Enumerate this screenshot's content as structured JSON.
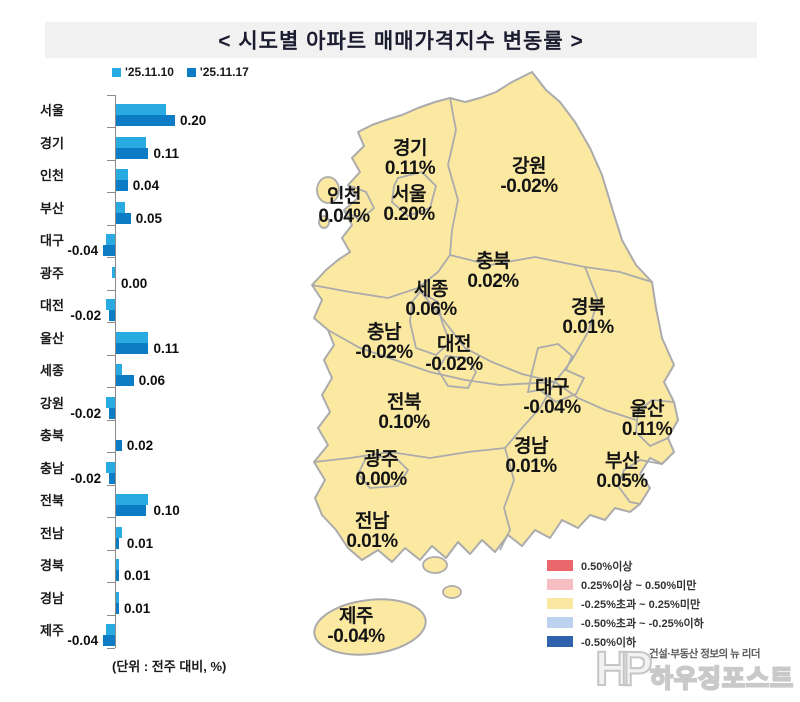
{
  "title": "<  시도별  아파트  매매가격지수  변동률  >",
  "colors": {
    "bar_light": "#29ABE2",
    "bar_dark": "#0C7DC4",
    "land": "#FBE9A2",
    "land_border": "#ABABAB",
    "banner_bg": "#F1F1F1",
    "title_color": "#1C1C30",
    "legend_red": "#E9676D",
    "legend_pink": "#F6BEC2",
    "legend_yellow": "#FBE8A0",
    "legend_lightblue": "#BDD2EE",
    "legend_blue": "#3061AD"
  },
  "series_legend": [
    {
      "label": "'25.11.10",
      "color": "#29ABE2"
    },
    {
      "label": "'25.11.17",
      "color": "#0C7DC4"
    }
  ],
  "chart_data": {
    "type": "bar",
    "orientation": "horizontal",
    "title": "시도별 아파트 매매가격지수 변동률",
    "unit_note": "(단위 : 전주 대비, %)",
    "xlabel": "",
    "ylabel": "",
    "xlim": [
      -0.1,
      0.3
    ],
    "grid": false,
    "legend_position": "top-left",
    "categories": [
      "서울",
      "경기",
      "인천",
      "부산",
      "대구",
      "광주",
      "대전",
      "울산",
      "세종",
      "강원",
      "충북",
      "충남",
      "전북",
      "전남",
      "경북",
      "경남",
      "제주"
    ],
    "series": [
      {
        "name": "'25.11.10",
        "color": "#29ABE2",
        "values": [
          0.17,
          0.1,
          0.04,
          0.03,
          -0.03,
          -0.01,
          -0.03,
          0.11,
          0.02,
          -0.03,
          0.0,
          -0.03,
          0.11,
          0.02,
          0.01,
          0.01,
          -0.03
        ]
      },
      {
        "name": "'25.11.17",
        "color": "#0C7DC4",
        "values": [
          0.2,
          0.11,
          0.04,
          0.05,
          -0.04,
          0.0,
          -0.02,
          0.11,
          0.06,
          -0.02,
          0.02,
          -0.02,
          0.1,
          0.01,
          0.01,
          0.01,
          -0.04
        ]
      }
    ],
    "value_labels": [
      "0.20",
      "0.11",
      "0.04",
      "0.05",
      "-0.04",
      "0.00",
      "-0.02",
      "0.11",
      "0.06",
      "-0.02",
      "0.02",
      "-0.02",
      "0.10",
      "0.01",
      "0.01",
      "0.01",
      "-0.04"
    ]
  },
  "map": {
    "regions": [
      {
        "id": "gyeonggi",
        "name": "경기",
        "value": "0.11%"
      },
      {
        "id": "incheon",
        "name": "인천",
        "value": "0.04%"
      },
      {
        "id": "seoul",
        "name": "서울",
        "value": "0.20%"
      },
      {
        "id": "gangwon",
        "name": "강원",
        "value": "-0.02%"
      },
      {
        "id": "chungbuk",
        "name": "충북",
        "value": "0.02%"
      },
      {
        "id": "sejong",
        "name": "세종",
        "value": "0.06%"
      },
      {
        "id": "chungnam",
        "name": "충남",
        "value": "-0.02%"
      },
      {
        "id": "daejeon",
        "name": "대전",
        "value": "-0.02%"
      },
      {
        "id": "gyeongbuk",
        "name": "경북",
        "value": "0.01%"
      },
      {
        "id": "daegu",
        "name": "대구",
        "value": "-0.04%"
      },
      {
        "id": "jeonbuk",
        "name": "전북",
        "value": "0.10%"
      },
      {
        "id": "ulsan",
        "name": "울산",
        "value": "0.11%"
      },
      {
        "id": "gyeongnam",
        "name": "경남",
        "value": "0.01%"
      },
      {
        "id": "busan",
        "name": "부산",
        "value": "0.05%"
      },
      {
        "id": "gwangju",
        "name": "광주",
        "value": "0.00%"
      },
      {
        "id": "jeonnam",
        "name": "전남",
        "value": "0.01%"
      },
      {
        "id": "jeju",
        "name": "제주",
        "value": "-0.04%"
      }
    ]
  },
  "map_legend": {
    "items": [
      {
        "label": "0.50%이상",
        "color": "#E9676D"
      },
      {
        "label": "0.25%이상  ~  0.50%미만",
        "color": "#F6BEC2"
      },
      {
        "label": "-0.25%초과  ~  0.25%미만",
        "color": "#FBE8A0"
      },
      {
        "label": "-0.50%초과  ~  -0.25%이하",
        "color": "#BDD2EE"
      },
      {
        "label": "-0.50%이하",
        "color": "#3061AD"
      }
    ]
  },
  "footer_logo": {
    "mark": "HP",
    "tagline": "건설·부동산 정보의 뉴 리더",
    "name": "하우징포스트"
  }
}
